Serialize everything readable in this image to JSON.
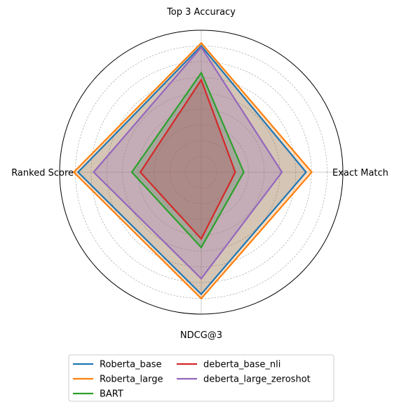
{
  "chart_data": {
    "type": "radar",
    "axes": [
      "Top 3 Accuracy",
      "Exact Match",
      "NDCG@3",
      "Ranked Score"
    ],
    "rlim": [
      0,
      1
    ],
    "grid": true,
    "legend_position": "bottom",
    "legend_columns": 2,
    "series": [
      {
        "name": "Roberta_base",
        "color": "#1f77b4",
        "values": [
          0.89,
          0.74,
          0.86,
          0.87
        ]
      },
      {
        "name": "Roberta_large",
        "color": "#ff7f0e",
        "values": [
          0.91,
          0.78,
          0.89,
          0.9
        ]
      },
      {
        "name": "BART",
        "color": "#2ca02c",
        "values": [
          0.7,
          0.3,
          0.53,
          0.49
        ]
      },
      {
        "name": "deberta_base_nli",
        "color": "#d62728",
        "values": [
          0.65,
          0.24,
          0.47,
          0.43
        ]
      },
      {
        "name": "deberta_large_zeroshot",
        "color": "#9467bd",
        "values": [
          0.88,
          0.57,
          0.75,
          0.76
        ]
      }
    ]
  }
}
